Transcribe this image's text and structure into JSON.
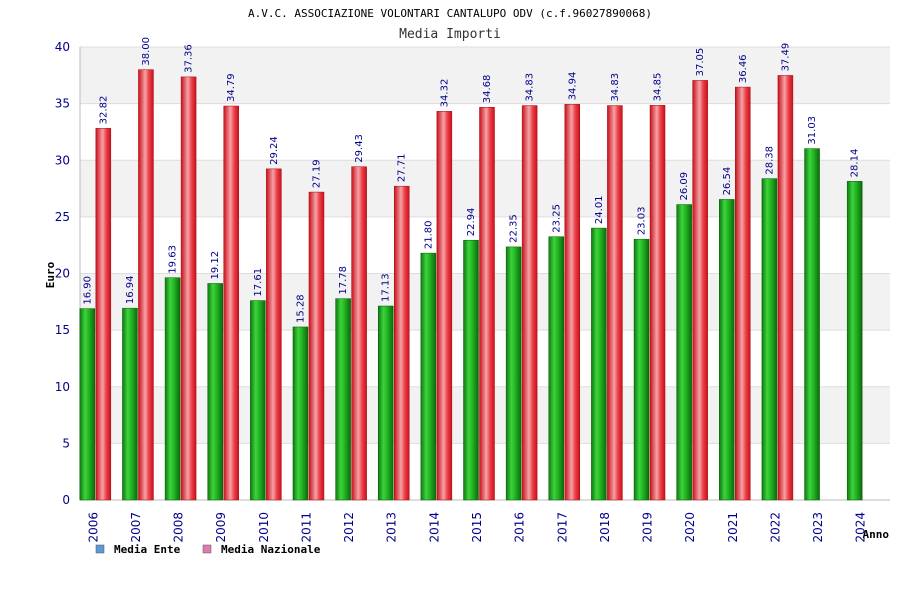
{
  "chart_data": {
    "type": "bar",
    "title": "A.V.C. ASSOCIAZIONE VOLONTARI CANTALUPO ODV (c.f.96027890068)",
    "subtitle": "Media Importi",
    "xlabel": "Anno",
    "ylabel": "Euro",
    "ylim": [
      0,
      40
    ],
    "yticks": [
      0,
      5,
      10,
      15,
      20,
      25,
      30,
      35,
      40
    ],
    "categories": [
      "2006",
      "2007",
      "2008",
      "2009",
      "2010",
      "2011",
      "2012",
      "2013",
      "2014",
      "2015",
      "2016",
      "2017",
      "2018",
      "2019",
      "2020",
      "2021",
      "2022",
      "2023",
      "2024"
    ],
    "series": [
      {
        "name": "Media Ente",
        "legend_color": "#5b9bd5",
        "bar_color": "#1fae1f",
        "values": [
          16.9,
          16.94,
          19.63,
          19.12,
          17.61,
          15.28,
          17.78,
          17.13,
          21.8,
          22.94,
          22.35,
          23.25,
          24.01,
          23.03,
          26.09,
          26.54,
          28.38,
          31.03,
          28.14
        ],
        "labels": [
          "16.90",
          "16.94",
          "19.63",
          "19.12",
          "17.61",
          "15.28",
          "17.78",
          "17.13",
          "21.80",
          "22.94",
          "22.35",
          "23.25",
          "24.01",
          "23.03",
          "26.09",
          "26.54",
          "28.38",
          "31.03",
          "28.14"
        ]
      },
      {
        "name": "Media Nazionale",
        "legend_color": "#e07ab0",
        "bar_color": "#e8202a",
        "values": [
          32.82,
          38.0,
          37.36,
          34.79,
          29.24,
          27.19,
          29.43,
          27.71,
          34.32,
          34.68,
          34.83,
          34.94,
          34.83,
          34.85,
          37.05,
          36.46,
          37.49,
          null,
          null
        ],
        "labels": [
          "32.82",
          "38.00",
          "37.36",
          "34.79",
          "29.24",
          "27.19",
          "29.43",
          "27.71",
          "34.32",
          "34.68",
          "34.83",
          "34.94",
          "34.83",
          "34.85",
          "37.05",
          "36.46",
          "37.49",
          null,
          null
        ]
      }
    ],
    "grid": true,
    "legend_position": "bottom-left"
  }
}
